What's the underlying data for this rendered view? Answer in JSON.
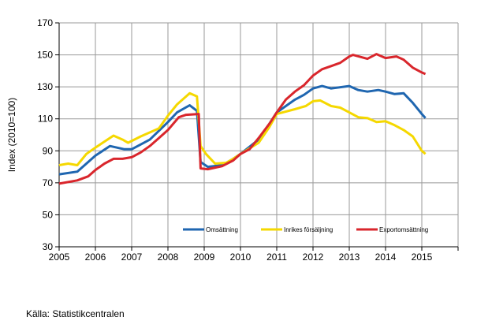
{
  "chart_data": {
    "type": "line",
    "title": "",
    "xlabel": "",
    "ylabel": "Index (2010=100)",
    "xlim": [
      2005,
      2016
    ],
    "ylim": [
      30,
      170
    ],
    "yticks": [
      30,
      50,
      70,
      90,
      110,
      130,
      150,
      170
    ],
    "xticks": [
      2005,
      2006,
      2007,
      2008,
      2009,
      2010,
      2011,
      2012,
      2013,
      2014,
      2015
    ],
    "grid": true,
    "legend_placement": "bottom-right",
    "series": [
      {
        "name": "Omsättning",
        "color": "#1f66b0",
        "x": [
          2005,
          2005.5,
          2006,
          2006.4,
          2006.8,
          2007,
          2007.5,
          2008,
          2008.25,
          2008.6,
          2008.8,
          2008.9,
          2009.1,
          2009.5,
          2009.8,
          2010,
          2010.5,
          2010.8,
          2011,
          2011.5,
          2011.75,
          2012,
          2012.25,
          2012.5,
          2013,
          2013.25,
          2013.5,
          2013.8,
          2014,
          2014.25,
          2014.5,
          2014.75,
          2015,
          2015.1
        ],
        "y": [
          75.3,
          77,
          87,
          93,
          91,
          91,
          97,
          108,
          114,
          118.5,
          115,
          83,
          80,
          81,
          85,
          88,
          97,
          107,
          114,
          122,
          125,
          129,
          130.5,
          129,
          130.5,
          128,
          127,
          128,
          127,
          125.5,
          126,
          120,
          113,
          110.5
        ]
      },
      {
        "name": "Inrikes försäljning",
        "color": "#f5d800",
        "x": [
          2005,
          2005.25,
          2005.5,
          2005.75,
          2006,
          2006.5,
          2006.75,
          2006.9,
          2007.25,
          2007.75,
          2008,
          2008.25,
          2008.6,
          2008.8,
          2008.9,
          2009.05,
          2009.3,
          2009.6,
          2009.8,
          2010,
          2010.5,
          2010.8,
          2011,
          2011.5,
          2011.8,
          2012,
          2012.2,
          2012.5,
          2012.75,
          2013,
          2013.25,
          2013.5,
          2013.75,
          2014,
          2014.25,
          2014.5,
          2014.75,
          2015,
          2015.1
        ],
        "y": [
          81,
          82,
          81,
          88,
          92,
          99.5,
          97,
          95,
          99,
          104,
          112,
          119,
          126,
          124,
          93,
          88,
          82,
          82.5,
          85,
          88,
          95,
          105,
          113,
          116,
          118,
          121,
          121.5,
          118,
          117,
          114,
          111,
          110.5,
          108,
          108.5,
          106,
          103,
          99,
          90,
          88
        ]
      },
      {
        "name": "Exportomsättning",
        "color": "#d9262c",
        "x": [
          2005,
          2005.5,
          2005.8,
          2006,
          2006.25,
          2006.5,
          2006.75,
          2007,
          2007.25,
          2007.5,
          2007.75,
          2008,
          2008.3,
          2008.5,
          2008.85,
          2008.9,
          2009.1,
          2009.5,
          2009.8,
          2010,
          2010.25,
          2010.5,
          2010.8,
          2011,
          2011.25,
          2011.5,
          2011.75,
          2012,
          2012.25,
          2012.5,
          2012.75,
          2013,
          2013.1,
          2013.5,
          2013.75,
          2014,
          2014.3,
          2014.5,
          2014.75,
          2015,
          2015.1
        ],
        "y": [
          69.5,
          71.5,
          74,
          78,
          82,
          85,
          85,
          86,
          89,
          93,
          98,
          103,
          111,
          112.5,
          113,
          79,
          78.5,
          80.5,
          84,
          88,
          91,
          98,
          107,
          114,
          122,
          127,
          131,
          137,
          141,
          143,
          145,
          149,
          150,
          147.5,
          150.5,
          148,
          149,
          147,
          142,
          139,
          138
        ]
      }
    ]
  },
  "source": "Källa: Statistikcentralen"
}
